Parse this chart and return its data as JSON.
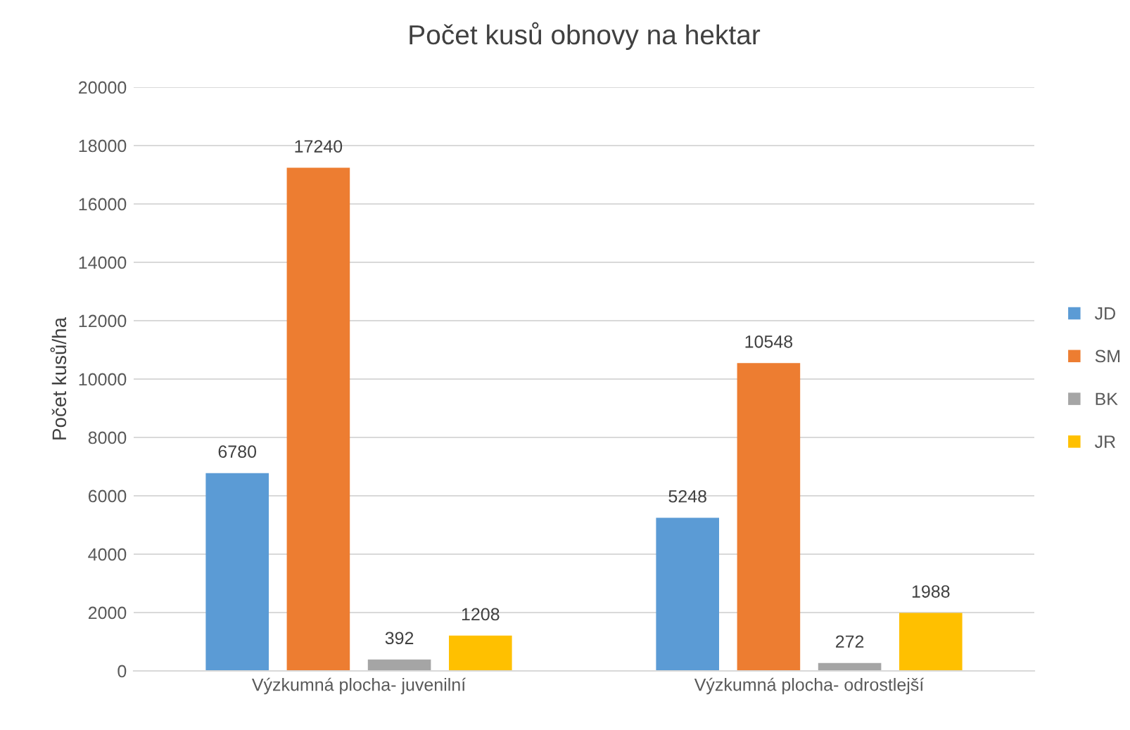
{
  "chart_data": {
    "type": "bar",
    "title": "Počet kusů obnovy na hektar",
    "ylabel": "Počet kusů/ha",
    "categories": [
      "Výzkumná plocha- juvenilní",
      "Výzkumná plocha- odrostlejší"
    ],
    "series": [
      {
        "name": "JD",
        "color": "#5b9bd5",
        "values": [
          6780,
          5248
        ]
      },
      {
        "name": "SM",
        "color": "#ed7d31",
        "values": [
          17240,
          10548
        ]
      },
      {
        "name": "BK",
        "color": "#a5a5a5",
        "values": [
          392,
          272
        ]
      },
      {
        "name": "JR",
        "color": "#ffc000",
        "values": [
          1208,
          1988
        ]
      }
    ],
    "ylim": [
      0,
      20000
    ],
    "yticks": [
      0,
      2000,
      4000,
      6000,
      8000,
      10000,
      12000,
      14000,
      16000,
      18000,
      20000
    ],
    "grid": "y",
    "legend": "right",
    "data_labels": true
  }
}
